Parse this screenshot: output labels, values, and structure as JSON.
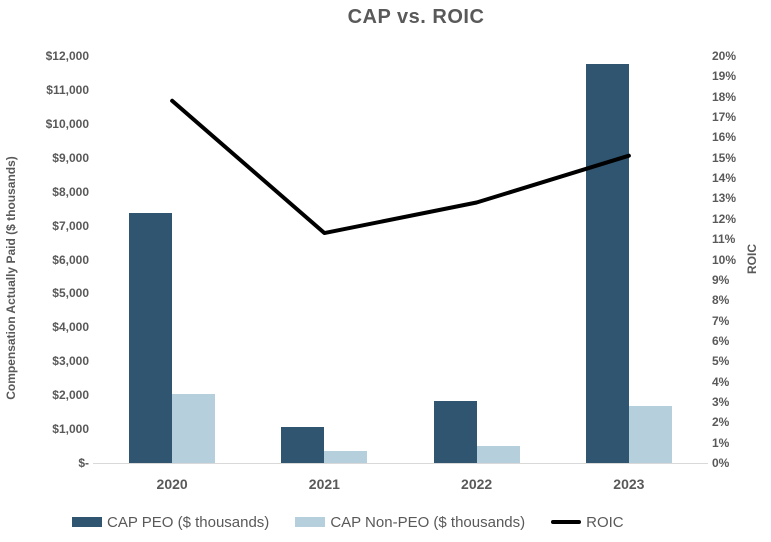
{
  "colors": {
    "cap_peo": "#305571",
    "cap_non_peo": "#b5cfdd",
    "roic_line": "#000000",
    "text": "#595959",
    "axis_line": "#d9d9d9"
  },
  "left_axis": {
    "title": "Compensation Actually Paid ($ thousands)",
    "ticks": [
      "$12,000",
      "$11,000",
      "$10,000",
      "$9,000",
      "$8,000",
      "$7,000",
      "$6,000",
      "$5,000",
      "$4,000",
      "$3,000",
      "$2,000",
      "$1,000",
      "$-"
    ]
  },
  "right_axis": {
    "title": "ROIC",
    "ticks": [
      "20%",
      "19%",
      "18%",
      "17%",
      "16%",
      "15%",
      "14%",
      "13%",
      "12%",
      "11%",
      "10%",
      "9%",
      "8%",
      "7%",
      "6%",
      "5%",
      "4%",
      "3%",
      "2%",
      "1%",
      "0%"
    ]
  },
  "chart_data": {
    "type": "bar+line",
    "title": "CAP vs. ROIC",
    "categories": [
      "2020",
      "2021",
      "2022",
      "2023"
    ],
    "series": [
      {
        "name": "CAP PEO ($ thousands)",
        "type": "bar",
        "axis": "left",
        "values": [
          7370,
          1060,
          1840,
          11760
        ]
      },
      {
        "name": "CAP Non-PEO ($ thousands)",
        "type": "bar",
        "axis": "left",
        "values": [
          2040,
          340,
          500,
          1680
        ]
      },
      {
        "name": "ROIC",
        "type": "line",
        "axis": "right",
        "values": [
          17.8,
          11.3,
          12.8,
          15.1
        ],
        "unit": "%"
      }
    ],
    "left_ylabel": "Compensation Actually Paid ($ thousands)",
    "right_ylabel": "ROIC",
    "left_ylim": [
      0,
      12000
    ],
    "right_ylim": [
      0,
      20
    ],
    "grid": false,
    "legend_position": "bottom"
  }
}
